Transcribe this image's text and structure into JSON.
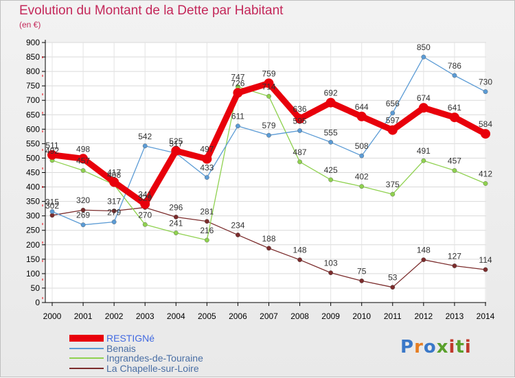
{
  "title": "Evolution du Montant de la Dette par Habitant",
  "subtitle": "(en €)",
  "brand": {
    "text": "Proxiti",
    "colors": [
      "#3a78c8",
      "#e67e22",
      "#3a78c8",
      "#5aa02c",
      "#c0392b",
      "#5aa02c",
      "#c0392b"
    ]
  },
  "chart_data": {
    "type": "line",
    "title": "Evolution du Montant de la Dette par Habitant",
    "subtitle": "(en €)",
    "xlabel": "",
    "ylabel": "",
    "x": [
      "2000",
      "2001",
      "2002",
      "2003",
      "2004",
      "2005",
      "2006",
      "2007",
      "2008",
      "2009",
      "2010",
      "2011",
      "2012",
      "2013",
      "2014"
    ],
    "ylim": [
      0,
      900
    ],
    "yticks": [
      0,
      50,
      100,
      150,
      200,
      250,
      300,
      350,
      400,
      450,
      500,
      550,
      600,
      650,
      700,
      750,
      800,
      850,
      900
    ],
    "grid": true,
    "legend_position": "bottom-left",
    "series": [
      {
        "name": "RESTIGNé",
        "color": "#e8000b",
        "values": [
          511,
          498,
          417,
          341,
          525,
          497,
          726,
          759,
          636,
          692,
          644,
          597,
          674,
          641,
          584
        ]
      },
      {
        "name": "Benais",
        "color": "#5b9bd5",
        "values": [
          315,
          269,
          279,
          542,
          517,
          433,
          611,
          579,
          595,
          555,
          508,
          656,
          850,
          786,
          730
        ]
      },
      {
        "name": "Ingrandes-de-Touraine",
        "color": "#8fd14f",
        "values": [
          492,
          457,
          408,
          270,
          241,
          216,
          747,
          714,
          487,
          425,
          402,
          375,
          491,
          457,
          412
        ]
      },
      {
        "name": "La Chapelle-sur-Loire",
        "color": "#7b2c2c",
        "values": [
          302,
          320,
          317,
          329,
          296,
          281,
          234,
          188,
          148,
          103,
          75,
          53,
          148,
          127,
          114
        ]
      }
    ]
  }
}
